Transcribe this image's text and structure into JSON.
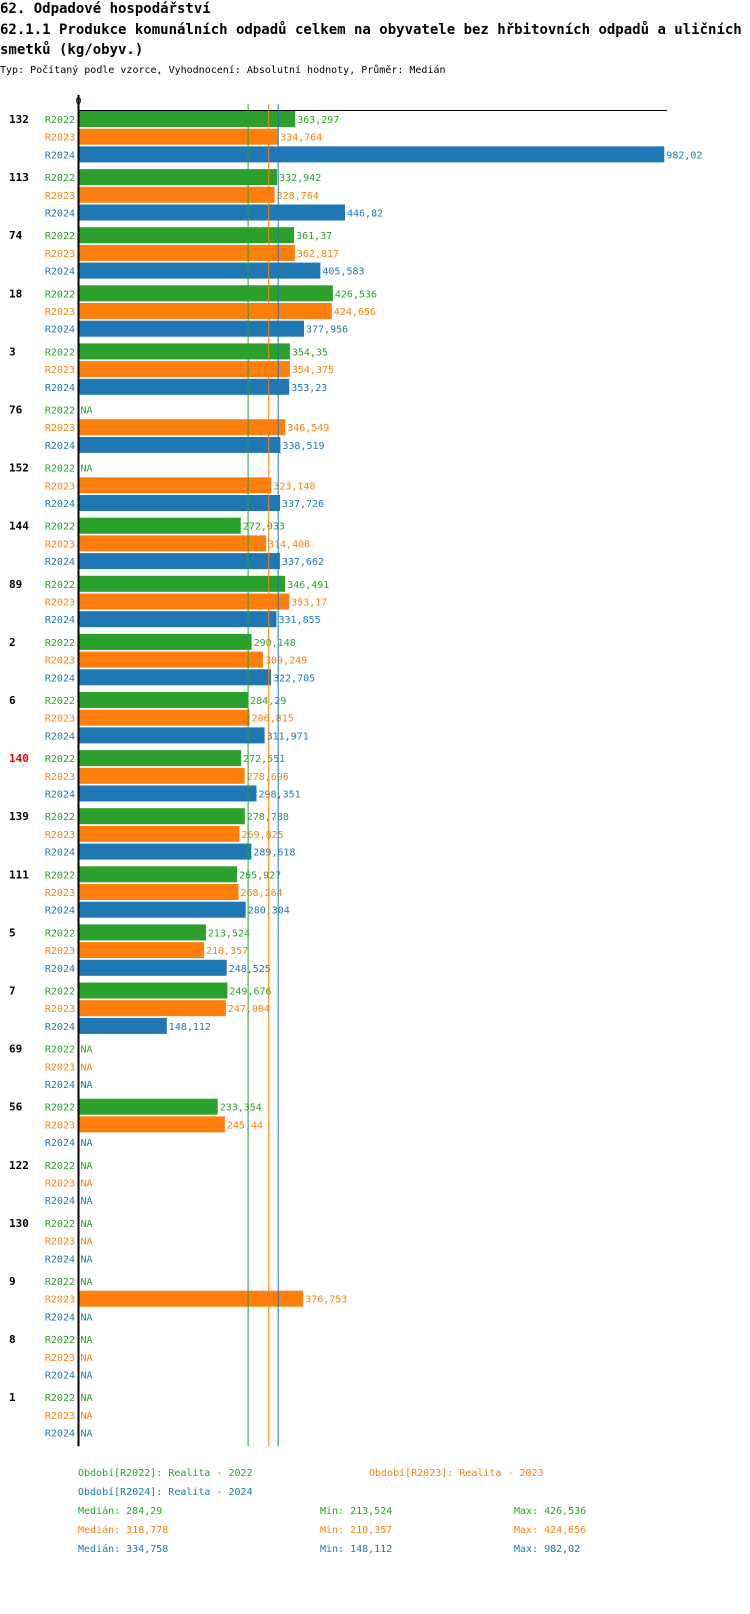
{
  "title": "62. Odpadové hospodářství",
  "chart_title": "62.1.1 Produkce komunálních odpadů celkem na obyvatele bez hřbitovních odpadů a uličních smetků (kg/obyv.)",
  "subtitle": "Typ: Počítaný podle vzorce, Vyhodnocení: Absolutní hodnoty, Průměr: Medián",
  "colors": {
    "R2022": "#2ca02c",
    "R2023": "#ff7f0e",
    "R2024": "#1f77b4",
    "highlight": "#ff0000"
  },
  "chart_data": {
    "type": "bar",
    "orientation": "horizontal",
    "axis_zero_label": "0",
    "xlim": [
      0,
      1010
    ],
    "series_names": [
      "R2022",
      "R2023",
      "R2024"
    ],
    "highlighted_category": "140",
    "categories": [
      "132",
      "113",
      "74",
      "18",
      "3",
      "76",
      "152",
      "144",
      "89",
      "2",
      "6",
      "140",
      "139",
      "111",
      "5",
      "7",
      "69",
      "56",
      "122",
      "130",
      "9",
      "8",
      "1"
    ],
    "series": [
      {
        "name": "R2022",
        "values": [
          363.297,
          332.942,
          361.37,
          426.536,
          354.35,
          null,
          null,
          272.033,
          346.491,
          290.148,
          284.29,
          272.551,
          278.788,
          265.927,
          213.524,
          249.676,
          null,
          233.354,
          null,
          null,
          null,
          null,
          null
        ],
        "labels": [
          "363,297",
          "332,942",
          "361,37",
          "426,536",
          "354,35",
          "NA",
          "NA",
          "272,033",
          "346,491",
          "290,148",
          "284,29",
          "272,551",
          "278,788",
          "265,927",
          "213,524",
          "249,676",
          "NA",
          "233,354",
          "NA",
          "NA",
          "NA",
          "NA",
          "NA"
        ]
      },
      {
        "name": "R2023",
        "values": [
          334.764,
          328.764,
          362.817,
          424.656,
          354.375,
          346.549,
          323.148,
          314.408,
          353.17,
          309.249,
          286.815,
          278.696,
          269.825,
          268.264,
          210.357,
          247.004,
          null,
          245.44,
          null,
          null,
          376.753,
          null,
          null
        ],
        "labels": [
          "334,764",
          "328,764",
          "362,817",
          "424,656",
          "354,375",
          "346,549",
          "323,148",
          "314,408",
          "353,17",
          "309,249",
          "286,815",
          "278,696",
          "269,825",
          "268,264",
          "210,357",
          "247,004",
          "NA",
          "245,44",
          "NA",
          "NA",
          "376,753",
          "NA",
          "NA"
        ]
      },
      {
        "name": "R2024",
        "values": [
          982.02,
          446.82,
          405.583,
          377.956,
          353.23,
          338.519,
          337.726,
          337.662,
          331.855,
          322.705,
          311.971,
          298.351,
          289.618,
          280.304,
          248.525,
          148.112,
          null,
          null,
          null,
          null,
          null,
          null,
          null
        ],
        "labels": [
          "982,02",
          "446,82",
          "405,583",
          "377,956",
          "353,23",
          "338,519",
          "337,726",
          "337,662",
          "331,855",
          "322,705",
          "311,971",
          "298,351",
          "289,618",
          "280,304",
          "248,525",
          "148,112",
          "NA",
          "NA",
          "NA",
          "NA",
          "NA",
          "NA",
          "NA"
        ]
      }
    ],
    "reference_lines": {
      "R2022": 284.29,
      "R2023": 318.778,
      "R2024": 334.758
    }
  },
  "legend": {
    "period_r2022": "Období[R2022]: Realita - 2022",
    "period_r2023": "Období[R2023]: Realita - 2023",
    "period_r2024": "Období[R2024]: Realita - 2024",
    "stats": [
      {
        "median": "Medián: 284,29",
        "min": "Min: 213,524",
        "max": "Max: 426,536"
      },
      {
        "median": "Medián: 318,778",
        "min": "Min: 210,357",
        "max": "Max: 424,656"
      },
      {
        "median": "Medián: 334,758",
        "min": "Min: 148,112",
        "max": "Max: 982,02"
      }
    ]
  }
}
